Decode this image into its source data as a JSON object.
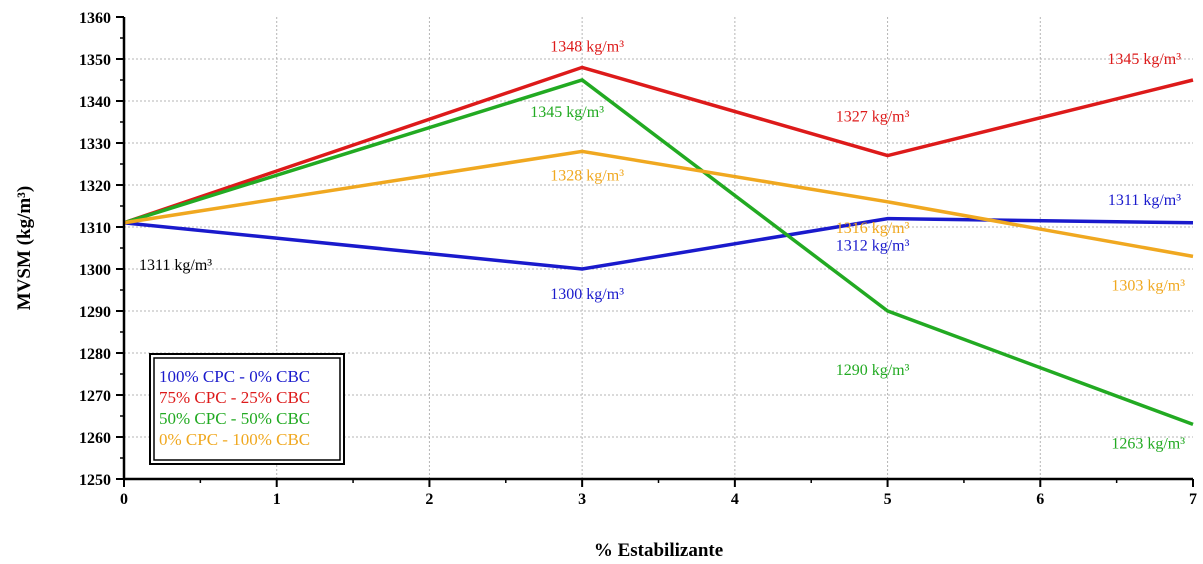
{
  "chart_data": {
    "type": "line",
    "xlabel": "% Estabilizante",
    "ylabel": "MVSM (kg/m³)",
    "xlim": [
      0,
      7
    ],
    "ylim": [
      1250,
      1360
    ],
    "xticks": [
      "0",
      "1",
      "2",
      "3",
      "4",
      "5",
      "6",
      "7"
    ],
    "yticks": [
      "1250",
      "1260",
      "1270",
      "1280",
      "1290",
      "1300",
      "1310",
      "1320",
      "1330",
      "1340",
      "1350",
      "1360"
    ],
    "grid": true,
    "legend_position": "bottom-left",
    "x": [
      0,
      3,
      5,
      7
    ],
    "series": [
      {
        "name": "100% CPC - 0% CBC",
        "color": "#1a1acc",
        "values": [
          1311,
          1300,
          1312,
          1311
        ],
        "labels": [
          "1311 kg/m³",
          "1300 kg/m³",
          "1312 kg/m³",
          "1311 kg/m³"
        ],
        "label_colors": [
          "#000000",
          "#1a1acc",
          "#1a1acc",
          "#1a1acc"
        ]
      },
      {
        "name": "75% CPC - 25% CBC",
        "color": "#dd1a1a",
        "values": [
          1311,
          1348,
          1327,
          1345
        ],
        "labels": [
          "",
          "1348 kg/m³",
          "1327 kg/m³",
          "1345 kg/m³"
        ]
      },
      {
        "name": "50% CPC - 50% CBC",
        "color": "#22aa22",
        "values": [
          1311,
          1345,
          1290,
          1263
        ],
        "labels": [
          "",
          "1345 kg/m³",
          "1290 kg/m³",
          "1263 kg/m³"
        ]
      },
      {
        "name": "0% CPC - 100% CBC",
        "color": "#f0a820",
        "values": [
          1311,
          1328,
          1316,
          1303
        ],
        "labels": [
          "",
          "1328 kg/m³",
          "1316 kg/m³",
          "1303 kg/m³"
        ]
      }
    ]
  }
}
